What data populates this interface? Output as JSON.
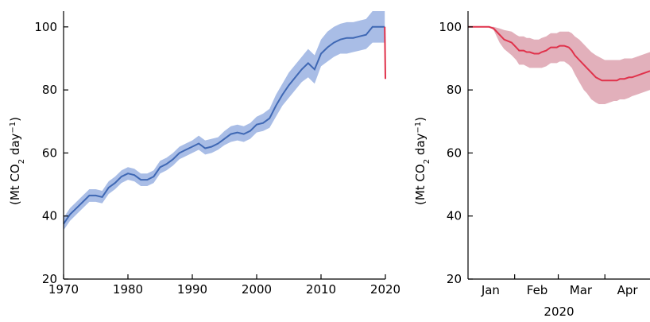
{
  "chart_data": [
    {
      "type": "line",
      "ylabel_text": "(Mt CO",
      "ylabel_sub": "2",
      "ylabel_rest": " day",
      "ylabel_sup": "−1",
      "ylabel_close": ")",
      "xlim": [
        1970,
        2020
      ],
      "ylim": [
        20,
        105
      ],
      "xticks": [
        "1970",
        "1980",
        "1990",
        "2000",
        "2010",
        "2020"
      ],
      "yticks": [
        "20",
        "40",
        "60",
        "80",
        "100"
      ],
      "series_color": "#3f68b4",
      "band_color": "#a9bde6",
      "drop_color": "#e0324b",
      "series": [
        {
          "x": [
            1970,
            1971,
            1972,
            1973,
            1974,
            1975,
            1976,
            1977,
            1978,
            1979,
            1980,
            1981,
            1982,
            1983,
            1984,
            1985,
            1986,
            1987,
            1988,
            1989,
            1990,
            1991,
            1992,
            1993,
            1994,
            1995,
            1996,
            1997,
            1998,
            1999,
            2000,
            2001,
            2002,
            2003,
            2004,
            2005,
            2006,
            2007,
            2008,
            2009,
            2010,
            2011,
            2012,
            2013,
            2014,
            2015,
            2016,
            2017,
            2018,
            2019,
            2019.9
          ],
          "values": [
            37.5,
            40.5,
            42.5,
            44.5,
            46.5,
            46.5,
            46.0,
            49.0,
            50.5,
            52.5,
            53.5,
            53.0,
            51.5,
            51.5,
            52.5,
            55.5,
            56.5,
            58.0,
            60.0,
            61.0,
            62.0,
            63.0,
            61.5,
            62.0,
            63.0,
            64.5,
            66.0,
            66.5,
            66.0,
            67.0,
            69.0,
            69.5,
            71.0,
            75.0,
            78.5,
            81.5,
            84.0,
            86.5,
            88.5,
            86.5,
            91.5,
            93.5,
            95.0,
            96.0,
            96.5,
            96.5,
            97.0,
            97.5,
            100.0,
            100.0,
            100.0
          ],
          "lower": [
            35.5,
            38.5,
            40.5,
            42.5,
            44.5,
            44.5,
            44.0,
            47.0,
            48.5,
            50.5,
            51.5,
            51.0,
            49.5,
            49.5,
            50.5,
            53.5,
            54.5,
            56.0,
            58.0,
            59.0,
            60.0,
            61.0,
            59.5,
            60.0,
            61.0,
            62.5,
            63.5,
            64.0,
            63.5,
            64.5,
            66.5,
            67.0,
            68.0,
            71.5,
            75.0,
            77.5,
            80.0,
            82.5,
            84.0,
            82.0,
            87.5,
            89.0,
            90.5,
            91.5,
            91.5,
            92.0,
            92.5,
            93.0,
            95.0,
            95.0,
            95.0
          ],
          "upper": [
            39.5,
            42.5,
            44.5,
            46.5,
            48.5,
            48.5,
            48.0,
            51.0,
            52.5,
            54.5,
            55.5,
            55.0,
            53.5,
            53.5,
            54.5,
            57.5,
            58.5,
            60.0,
            62.0,
            63.0,
            64.0,
            65.5,
            64.0,
            64.5,
            65.0,
            67.0,
            68.5,
            69.0,
            68.5,
            69.5,
            71.5,
            72.5,
            74.0,
            78.5,
            82.0,
            85.5,
            88.0,
            90.5,
            93.0,
            91.0,
            96.0,
            98.5,
            100.0,
            101.0,
            101.5,
            101.5,
            102.0,
            102.5,
            105.0,
            105.0,
            105.0
          ],
          "drop": {
            "x": [
              2019.9,
              2020
            ],
            "values": [
              100.0,
              83.5
            ]
          }
        }
      ]
    },
    {
      "type": "area",
      "ylabel_text": "(Mt CO",
      "ylabel_sub": "2",
      "ylabel_rest": " day",
      "ylabel_sup": "−1",
      "ylabel_close": ")",
      "xlabel": "2020",
      "xlim": [
        1,
        122
      ],
      "ylim": [
        20,
        105
      ],
      "xticks": [
        "Jan",
        "Feb",
        "Mar",
        "Apr"
      ],
      "xtick_day": [
        16,
        47,
        76,
        107
      ],
      "xtick_sep_day": [
        32,
        61,
        92
      ],
      "yticks": [
        "20",
        "40",
        "60",
        "80",
        "100"
      ],
      "series_color": "#e0324b",
      "band_color": "#e2b0bb",
      "series": [
        {
          "x": [
            1,
            5,
            10,
            15,
            18,
            22,
            25,
            30,
            33,
            35,
            38,
            40,
            42,
            45,
            48,
            50,
            53,
            56,
            58,
            60,
            62,
            65,
            68,
            70,
            72,
            75,
            78,
            80,
            83,
            86,
            88,
            90,
            92,
            95,
            98,
            100,
            102,
            105,
            108,
            110,
            113,
            116,
            119,
            122
          ],
          "values": [
            100,
            100,
            100,
            100,
            99.5,
            97.5,
            96,
            95,
            93.5,
            92.5,
            92.5,
            92,
            92,
            91.5,
            91.5,
            92,
            92.5,
            93.5,
            93.5,
            93.5,
            94,
            94,
            93.5,
            92.5,
            91,
            89.5,
            88,
            87,
            85.5,
            84,
            83.5,
            83,
            83,
            83,
            83,
            83,
            83.5,
            83.5,
            84,
            84,
            84.5,
            85,
            85.5,
            86
          ],
          "lower": [
            100,
            100,
            100,
            100,
            99,
            95,
            93,
            91,
            89.5,
            88,
            88,
            87.5,
            87,
            87,
            87,
            87,
            87.5,
            88.5,
            88.5,
            88.5,
            89,
            89,
            88,
            87,
            85,
            82.5,
            80,
            79,
            77,
            76,
            75.5,
            75.5,
            75.5,
            76,
            76.5,
            76.5,
            77,
            77,
            77.5,
            78,
            78.5,
            79,
            79.5,
            80
          ],
          "upper": [
            100,
            100,
            100,
            100,
            100,
            99.5,
            99,
            98.5,
            97.5,
            97,
            97,
            96.5,
            96.5,
            96,
            96,
            96.5,
            97,
            98,
            98,
            98,
            98.5,
            98.5,
            98.5,
            98,
            97,
            96,
            94.5,
            93.5,
            92,
            91,
            90.5,
            90,
            89.5,
            89.5,
            89.5,
            89.5,
            89.5,
            90,
            90,
            90,
            90.5,
            91,
            91.5,
            92
          ]
        }
      ]
    }
  ]
}
